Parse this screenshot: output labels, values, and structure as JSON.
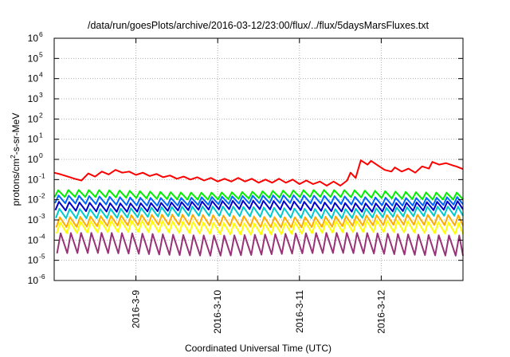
{
  "chart_data": {
    "type": "line",
    "title": "/data/run/goesPlots/archive/2016-03-12/23:00/flux/../flux/5daysMarsFluxes.txt",
    "xlabel": "Coordinated Universal Time (UTC)",
    "ylabel": "protons/cm²-s-sr-MeV",
    "ylabel_parts": {
      "pre": "protons/cm",
      "sup": "2",
      "post": "-s-sr-MeV"
    },
    "yscale": "log",
    "ylim": [
      1e-06,
      1000000.0
    ],
    "xlim": [
      "2016-03-08T00:00",
      "2016-03-13T00:00"
    ],
    "x_ticks": [
      "2016-3-9",
      "2016-3-10",
      "2016-3-11",
      "2016-3-12"
    ],
    "y_ticks": [
      {
        "base": "10",
        "exp": "-6"
      },
      {
        "base": "10",
        "exp": "-5"
      },
      {
        "base": "10",
        "exp": "-4"
      },
      {
        "base": "10",
        "exp": "-3"
      },
      {
        "base": "10",
        "exp": "-2"
      },
      {
        "base": "10",
        "exp": "-1"
      },
      {
        "base": "10",
        "exp": "0"
      },
      {
        "base": "10",
        "exp": "1"
      },
      {
        "base": "10",
        "exp": "2"
      },
      {
        "base": "10",
        "exp": "3"
      },
      {
        "base": "10",
        "exp": "4"
      },
      {
        "base": "10",
        "exp": "5"
      },
      {
        "base": "10",
        "exp": "6"
      }
    ],
    "grid": true,
    "legend": "none",
    "series": [
      {
        "color": "#ff0000",
        "points": [
          [
            "2016-03-08T00:00",
            0.22
          ],
          [
            "2016-03-08T02:00",
            0.18
          ],
          [
            "2016-03-08T04:00",
            0.14
          ],
          [
            "2016-03-08T06:00",
            0.11
          ],
          [
            "2016-03-08T08:00",
            0.09
          ],
          [
            "2016-03-08T10:00",
            0.2
          ],
          [
            "2016-03-08T12:00",
            0.14
          ],
          [
            "2016-03-08T14:00",
            0.25
          ],
          [
            "2016-03-08T16:00",
            0.18
          ],
          [
            "2016-03-08T18:00",
            0.3
          ],
          [
            "2016-03-08T20:00",
            0.22
          ],
          [
            "2016-03-08T22:00",
            0.25
          ],
          [
            "2016-03-09T00:00",
            0.17
          ],
          [
            "2016-03-09T02:00",
            0.22
          ],
          [
            "2016-03-09T04:00",
            0.15
          ],
          [
            "2016-03-09T06:00",
            0.19
          ],
          [
            "2016-03-09T08:00",
            0.13
          ],
          [
            "2016-03-09T10:00",
            0.16
          ],
          [
            "2016-03-09T12:00",
            0.11
          ],
          [
            "2016-03-09T14:00",
            0.14
          ],
          [
            "2016-03-09T16:00",
            0.1
          ],
          [
            "2016-03-09T18:00",
            0.13
          ],
          [
            "2016-03-09T20:00",
            0.09
          ],
          [
            "2016-03-09T22:00",
            0.12
          ],
          [
            "2016-03-10T00:00",
            0.08
          ],
          [
            "2016-03-10T02:00",
            0.11
          ],
          [
            "2016-03-10T04:00",
            0.08
          ],
          [
            "2016-03-10T06:00",
            0.12
          ],
          [
            "2016-03-10T08:00",
            0.08
          ],
          [
            "2016-03-10T10:00",
            0.11
          ],
          [
            "2016-03-10T12:00",
            0.07
          ],
          [
            "2016-03-10T14:00",
            0.1
          ],
          [
            "2016-03-10T16:00",
            0.07
          ],
          [
            "2016-03-10T18:00",
            0.11
          ],
          [
            "2016-03-10T20:00",
            0.07
          ],
          [
            "2016-03-10T22:00",
            0.1
          ],
          [
            "2016-03-11T00:00",
            0.06
          ],
          [
            "2016-03-11T02:00",
            0.09
          ],
          [
            "2016-03-11T04:00",
            0.06
          ],
          [
            "2016-03-11T06:00",
            0.08
          ],
          [
            "2016-03-11T08:00",
            0.05
          ],
          [
            "2016-03-11T10:00",
            0.08
          ],
          [
            "2016-03-11T12:00",
            0.05
          ],
          [
            "2016-03-11T14:00",
            0.09
          ],
          [
            "2016-03-11T15:00",
            0.22
          ],
          [
            "2016-03-11T16:30",
            0.12
          ],
          [
            "2016-03-11T18:00",
            0.9
          ],
          [
            "2016-03-11T20:00",
            0.55
          ],
          [
            "2016-03-11T21:00",
            0.85
          ],
          [
            "2016-03-11T23:00",
            0.5
          ],
          [
            "2016-03-12T01:00",
            0.3
          ],
          [
            "2016-03-12T03:00",
            0.25
          ],
          [
            "2016-03-12T04:00",
            0.4
          ],
          [
            "2016-03-12T06:00",
            0.25
          ],
          [
            "2016-03-12T08:00",
            0.35
          ],
          [
            "2016-03-12T10:00",
            0.22
          ],
          [
            "2016-03-12T12:00",
            0.45
          ],
          [
            "2016-03-12T14:00",
            0.35
          ],
          [
            "2016-03-12T15:00",
            0.75
          ],
          [
            "2016-03-12T17:00",
            0.55
          ],
          [
            "2016-03-12T19:00",
            0.65
          ],
          [
            "2016-03-12T21:00",
            0.5
          ],
          [
            "2016-03-12T22:00",
            0.45
          ],
          [
            "2016-03-13T00:00",
            0.33
          ]
        ]
      },
      {
        "color": "#00ee00",
        "baseline": 0.012,
        "amplitude": 2.2
      },
      {
        "color": "#0066ff",
        "baseline": 0.006,
        "amplitude": 2.4
      },
      {
        "color": "#0000cc",
        "baseline": 0.003,
        "amplitude": 2.6
      },
      {
        "color": "#00cccc",
        "baseline": 0.0014,
        "amplitude": 2.9
      },
      {
        "color": "#ffaa00",
        "baseline": 0.0005,
        "amplitude": 3.2
      },
      {
        "color": "#ffff00",
        "baseline": 0.00022,
        "amplitude": 3.6
      },
      {
        "color": "#993377",
        "baseline": 2e-05,
        "amplitude": 10.0
      }
    ],
    "sawtooth_period_hours": 3
  }
}
